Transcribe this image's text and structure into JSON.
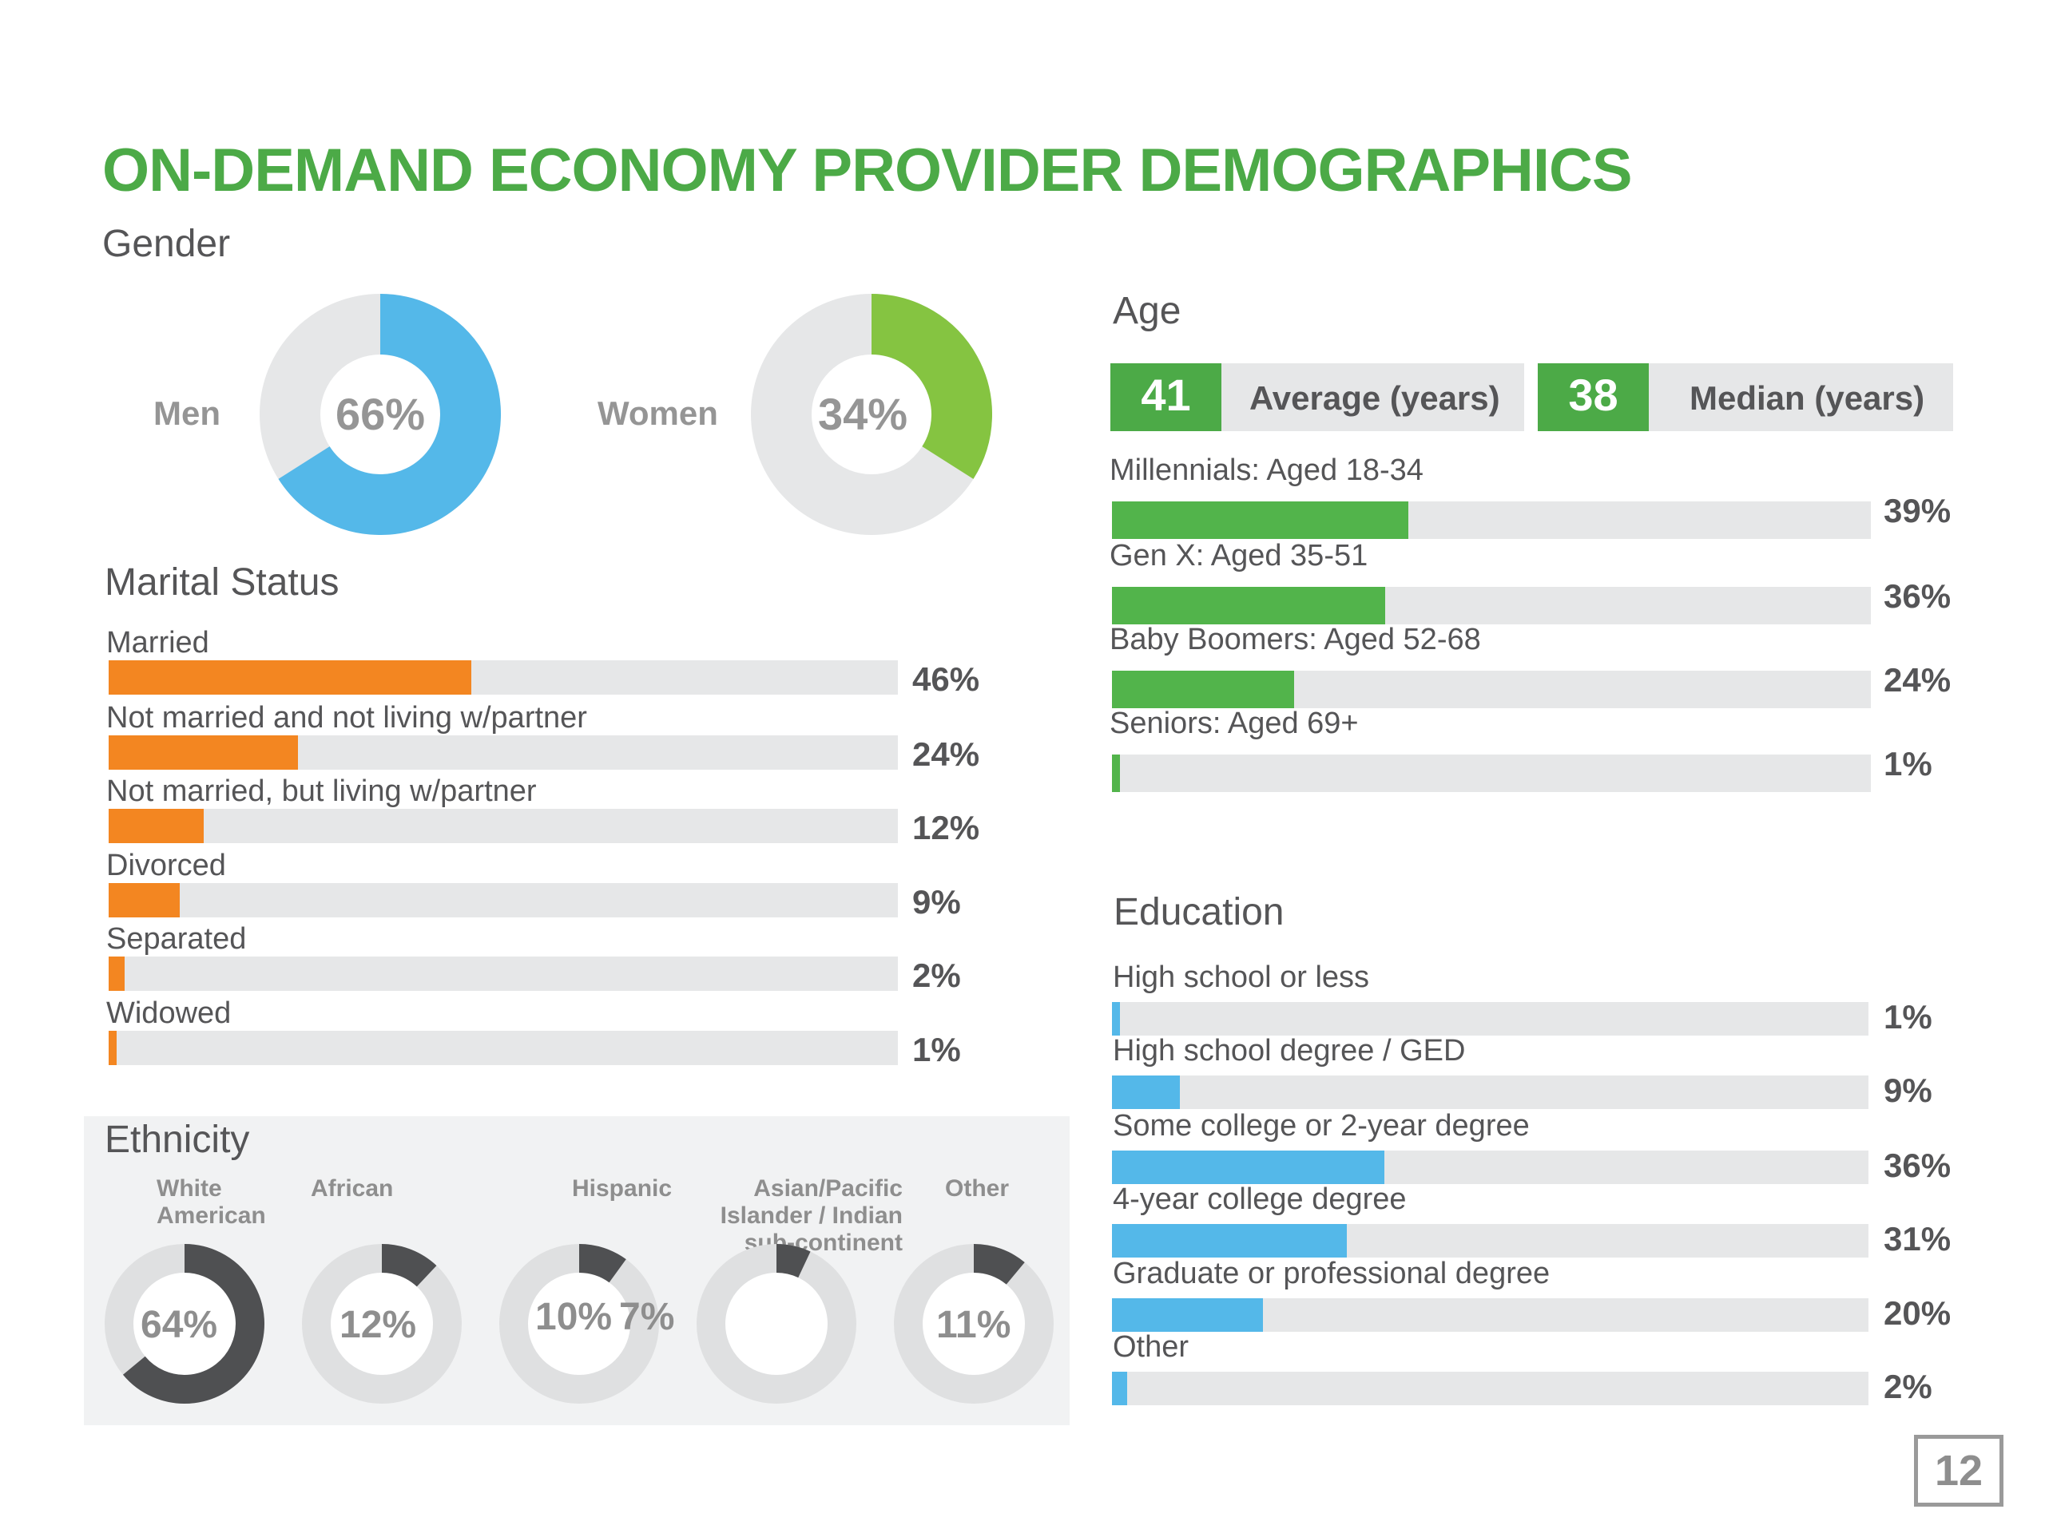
{
  "title": "ON-DEMAND ECONOMY PROVIDER DEMOGRAPHICS",
  "page_number": "12",
  "colors": {
    "title_green": "#4caa47",
    "men_blue": "#54b8e9",
    "women_green": "#85c441",
    "marital_orange": "#f38621",
    "age_green": "#52b44b",
    "education_blue": "#54b8e9",
    "ethnicity_dark": "#4f5052",
    "track_gray": "#e6e7e8"
  },
  "gender": {
    "title": "Gender",
    "items": [
      {
        "label": "Men",
        "value": 66,
        "display": "66%"
      },
      {
        "label": "Women",
        "value": 34,
        "display": "34%"
      }
    ]
  },
  "marital": {
    "title": "Marital Status",
    "items": [
      {
        "label": "Married",
        "value": 46,
        "display": "46%"
      },
      {
        "label": "Not married and not living w/partner",
        "value": 24,
        "display": "24%"
      },
      {
        "label": "Not married, but living w/partner",
        "value": 12,
        "display": "12%"
      },
      {
        "label": "Divorced",
        "value": 9,
        "display": "9%"
      },
      {
        "label": "Separated",
        "value": 2,
        "display": "2%"
      },
      {
        "label": "Widowed",
        "value": 1,
        "display": "1%"
      }
    ]
  },
  "ethnicity": {
    "title": "Ethnicity",
    "items": [
      {
        "label": "White American",
        "value": 64,
        "display": "64%"
      },
      {
        "label": "African",
        "value": 12,
        "display": "12%"
      },
      {
        "label": "Hispanic",
        "value": 10,
        "display": "10%"
      },
      {
        "label": "Asian/Pacific Islander / Indian sub-continent",
        "value": 7,
        "display": "7%"
      },
      {
        "label": "Other",
        "value": 11,
        "display": "11%"
      }
    ]
  },
  "age": {
    "title": "Age",
    "average": {
      "value": "41",
      "label": "Average (years)"
    },
    "median": {
      "value": "38",
      "label": "Median (years)"
    },
    "items": [
      {
        "label": "Millennials: Aged 18-34",
        "value": 39,
        "display": "39%"
      },
      {
        "label": "Gen X: Aged 35-51",
        "value": 36,
        "display": "36%"
      },
      {
        "label": "Baby Boomers: Aged 52-68",
        "value": 24,
        "display": "24%"
      },
      {
        "label": "Seniors: Aged 69+",
        "value": 1,
        "display": "1%"
      }
    ]
  },
  "education": {
    "title": "Education",
    "items": [
      {
        "label": "High school or less",
        "value": 1,
        "display": "1%"
      },
      {
        "label": "High school degree / GED",
        "value": 9,
        "display": "9%"
      },
      {
        "label": "Some college or 2-year degree",
        "value": 36,
        "display": "36%"
      },
      {
        "label": "4-year college degree",
        "value": 31,
        "display": "31%"
      },
      {
        "label": "Graduate or professional degree",
        "value": 20,
        "display": "20%"
      },
      {
        "label": "Other",
        "value": 2,
        "display": "2%"
      }
    ]
  },
  "chart_data": [
    {
      "type": "pie",
      "title": "Gender",
      "categories": [
        "Men",
        "Women"
      ],
      "values": [
        66,
        34
      ],
      "unit": "%"
    },
    {
      "type": "bar",
      "title": "Marital Status",
      "orientation": "horizontal",
      "categories": [
        "Married",
        "Not married and not living w/partner",
        "Not married, but living w/partner",
        "Divorced",
        "Separated",
        "Widowed"
      ],
      "values": [
        46,
        24,
        12,
        9,
        2,
        1
      ],
      "xlim": [
        0,
        100
      ],
      "unit": "%"
    },
    {
      "type": "pie",
      "title": "Ethnicity",
      "categories": [
        "White American",
        "African",
        "Hispanic",
        "Asian/Pacific Islander / Indian sub-continent",
        "Other"
      ],
      "values": [
        64,
        12,
        10,
        7,
        11
      ],
      "unit": "%"
    },
    {
      "type": "bar",
      "title": "Age",
      "orientation": "horizontal",
      "categories": [
        "Millennials: Aged 18-34",
        "Gen X: Aged 35-51",
        "Baby Boomers: Aged 52-68",
        "Seniors: Aged 69+"
      ],
      "values": [
        39,
        36,
        24,
        1
      ],
      "xlim": [
        0,
        100
      ],
      "unit": "%",
      "annotations": {
        "average_years": 41,
        "median_years": 38
      }
    },
    {
      "type": "bar",
      "title": "Education",
      "orientation": "horizontal",
      "categories": [
        "High school or less",
        "High school degree / GED",
        "Some college or 2-year degree",
        "4-year college degree",
        "Graduate or professional degree",
        "Other"
      ],
      "values": [
        1,
        9,
        36,
        31,
        20,
        2
      ],
      "xlim": [
        0,
        100
      ],
      "unit": "%"
    }
  ]
}
